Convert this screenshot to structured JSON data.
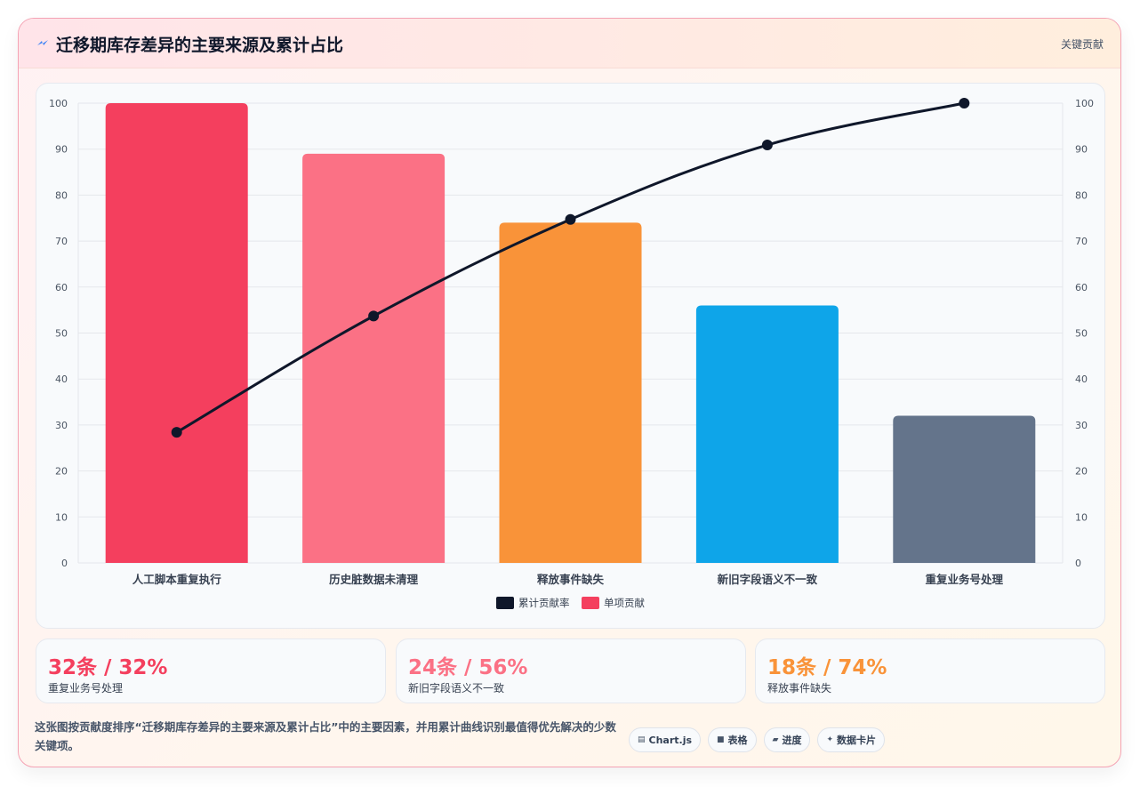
{
  "header": {
    "title": "迁移期库存差异的主要来源及累计占比",
    "link": "关键贡献",
    "icon": "bolt-icon"
  },
  "chart_data": {
    "type": "bar",
    "categories": [
      "人工脚本重复执行",
      "历史脏数据未清理",
      "释放事件缺失",
      "新旧字段语义不一致",
      "重复业务号处理"
    ],
    "series": [
      {
        "name": "单项贡献",
        "type": "bar",
        "values": [
          100,
          89,
          74,
          56,
          32
        ],
        "colors": [
          "#f43f5e",
          "#fb7185",
          "#f99339",
          "#0ea5e9",
          "#64748b"
        ]
      },
      {
        "name": "累计贡献率",
        "type": "line",
        "values": [
          28.4,
          53.7,
          74.7,
          90.9,
          100
        ],
        "color": "#0f172a"
      }
    ],
    "ylim": [
      0,
      100
    ],
    "y2lim": [
      0,
      100
    ],
    "yticks": [
      0,
      10,
      20,
      30,
      40,
      50,
      60,
      70,
      80,
      90,
      100
    ],
    "legend": [
      "累计贡献率",
      "单项贡献"
    ],
    "legend_position": "bottom",
    "grid": true
  },
  "stats": [
    {
      "value": "32条 / 32%",
      "label": "重复业务号处理",
      "color": "#f43f5e"
    },
    {
      "value": "24条 / 56%",
      "label": "新旧字段语义不一致",
      "color": "#fb7185"
    },
    {
      "value": "18条 / 74%",
      "label": "释放事件缺失",
      "color": "#f99339"
    }
  ],
  "description": "这张图按贡献度排序“迁移期库存差异的主要来源及累计占比”中的主要因素，并用累计曲线识别最值得优先解决的少数关键项。",
  "tags": [
    {
      "label": "Chart.js",
      "icon": "chart-icon"
    },
    {
      "label": "表格",
      "icon": "table-icon"
    },
    {
      "label": "进度",
      "icon": "progress-icon"
    },
    {
      "label": "数据卡片",
      "icon": "sparkle-icon"
    }
  ]
}
